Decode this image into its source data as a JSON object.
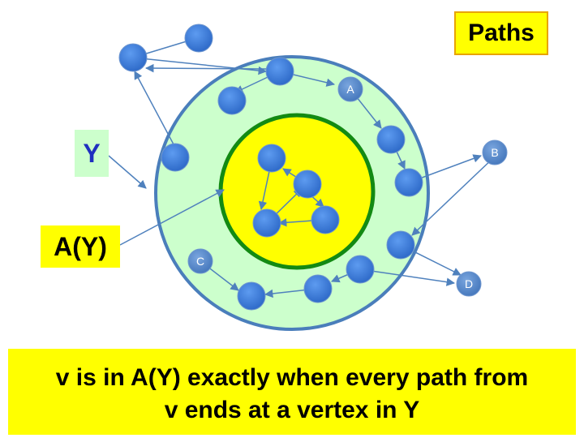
{
  "title": "Paths",
  "labels": {
    "y": "Y",
    "ay": "A(Y)"
  },
  "caption": {
    "line1": "v is in A(Y) exactly when every path from",
    "line2": "v ends at a vertex in Y"
  },
  "vertex_labels": {
    "a": "A",
    "b": "B",
    "c": "C",
    "d": "D"
  },
  "colors": {
    "outer_fill": "#ccffcc",
    "outer_stroke": "#4a7ebb",
    "inner_fill": "#ffff00",
    "inner_stroke": "#138a13",
    "node": "#3b7bd9",
    "label_node": "#4f86c6",
    "edge": "#4f81bd",
    "y_text": "#1f2fbf"
  }
}
